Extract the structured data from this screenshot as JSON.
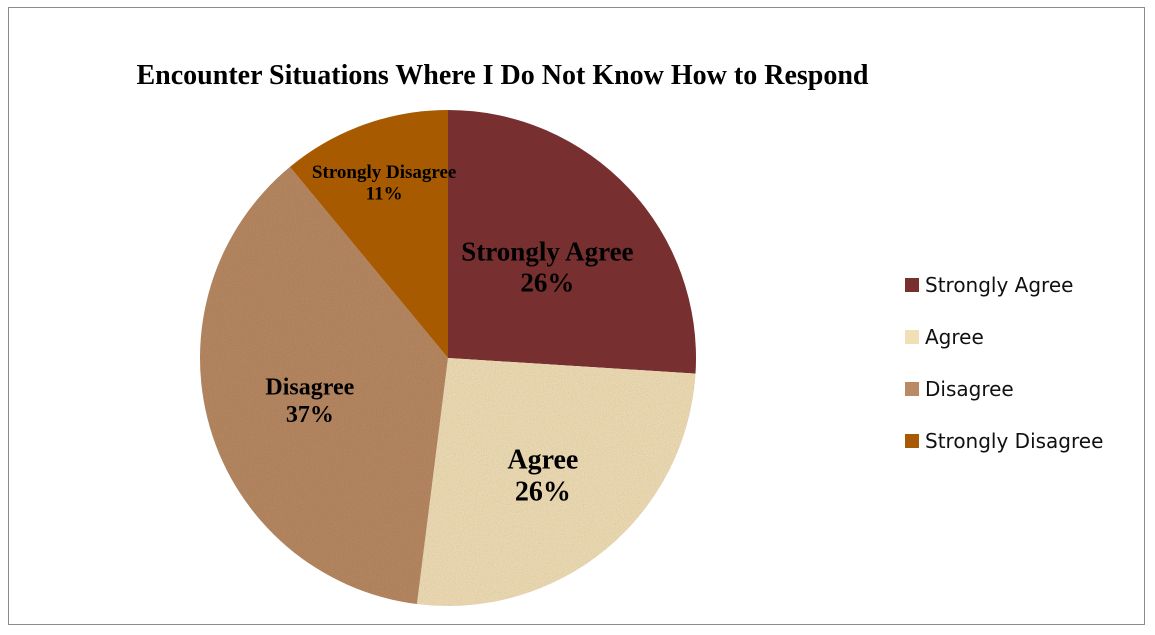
{
  "chart_data": {
    "type": "pie",
    "title": "Encounter Situations Where I Do Not Know How to Respond",
    "categories": [
      "Strongly Agree",
      "Agree",
      "Disagree",
      "Strongly Disagree"
    ],
    "values": [
      26,
      26,
      37,
      11
    ],
    "unit": "%",
    "data_labels": [
      "26%",
      "26%",
      "37%",
      "11%"
    ],
    "colors": [
      "#772f2f",
      "#f1dfb6",
      "#b98a63",
      "#a85a00"
    ],
    "legend_position": "right",
    "start_angle_deg": 0,
    "direction": "clockwise"
  }
}
